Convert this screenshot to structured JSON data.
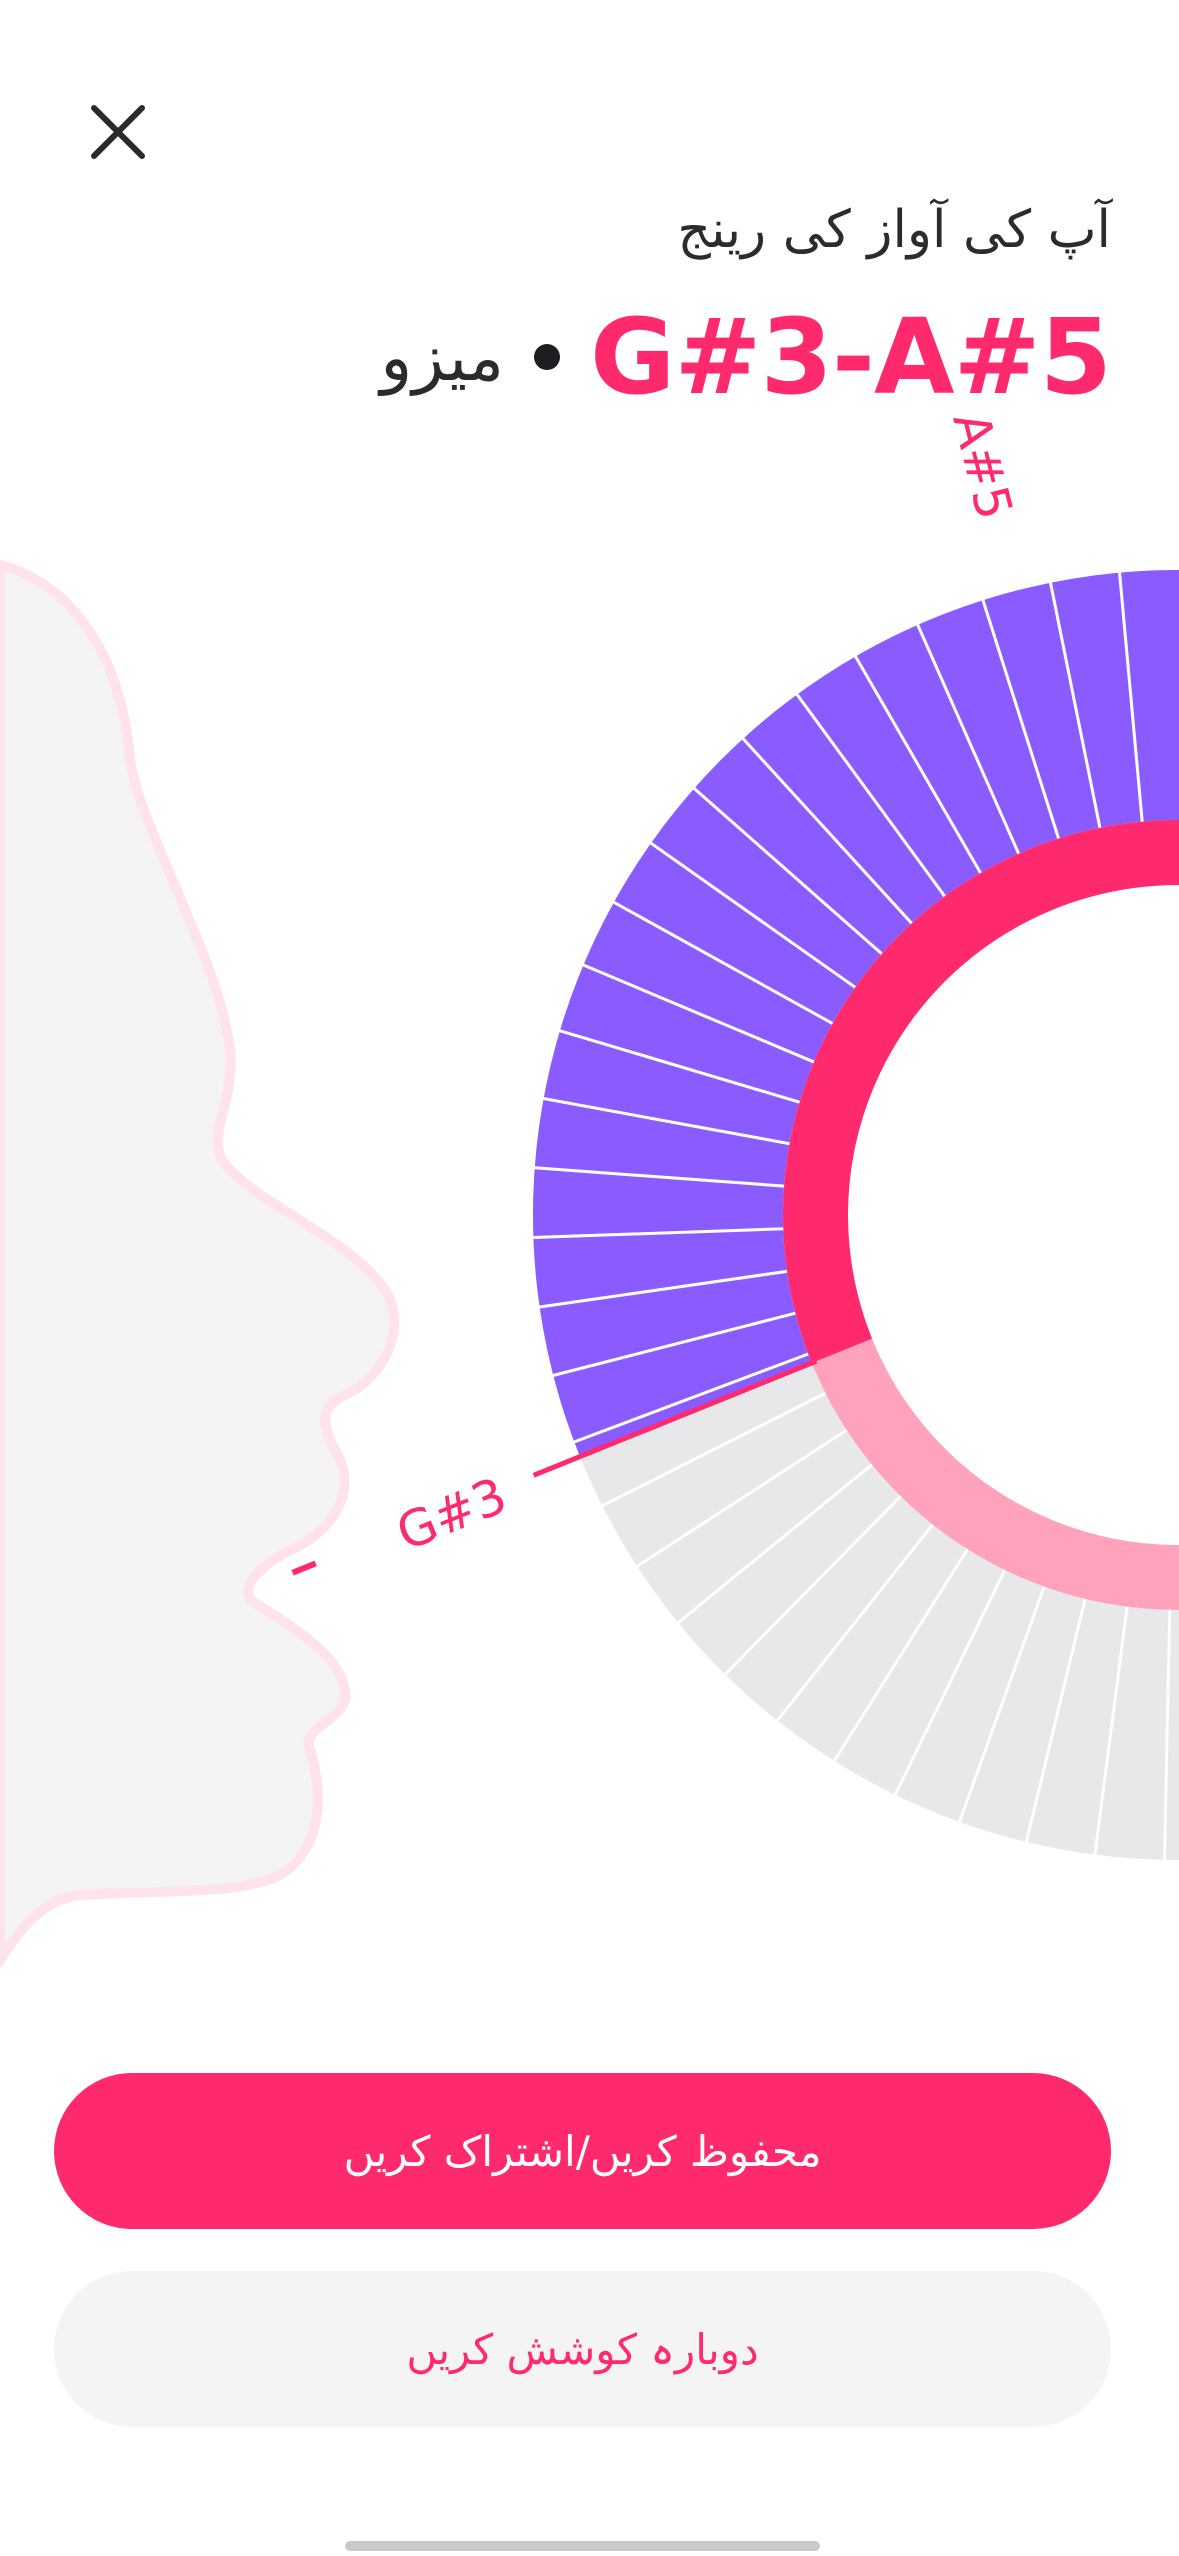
{
  "header": {
    "close_icon": "close-icon",
    "range_label": "آپ کی آواز کی رینج",
    "range_value": "G#3-A#5",
    "separator": "•",
    "voice_type": "میزو"
  },
  "chart_data": {
    "type": "radial-range",
    "low_note": "G#3",
    "high_note": "A#5"
  },
  "actions": {
    "save_share_label": "محفوظ کریں/اشتراک کریں",
    "retry_label": "دوبارہ کوشش کریں"
  },
  "colors": {
    "accent": "#ff2a6d",
    "accent_light": "#ffa3bd",
    "range_fill": "#8a5cff",
    "track": "#e8e8ea",
    "face": "#f4f4f5",
    "face_outline": "#ffe3ec"
  }
}
